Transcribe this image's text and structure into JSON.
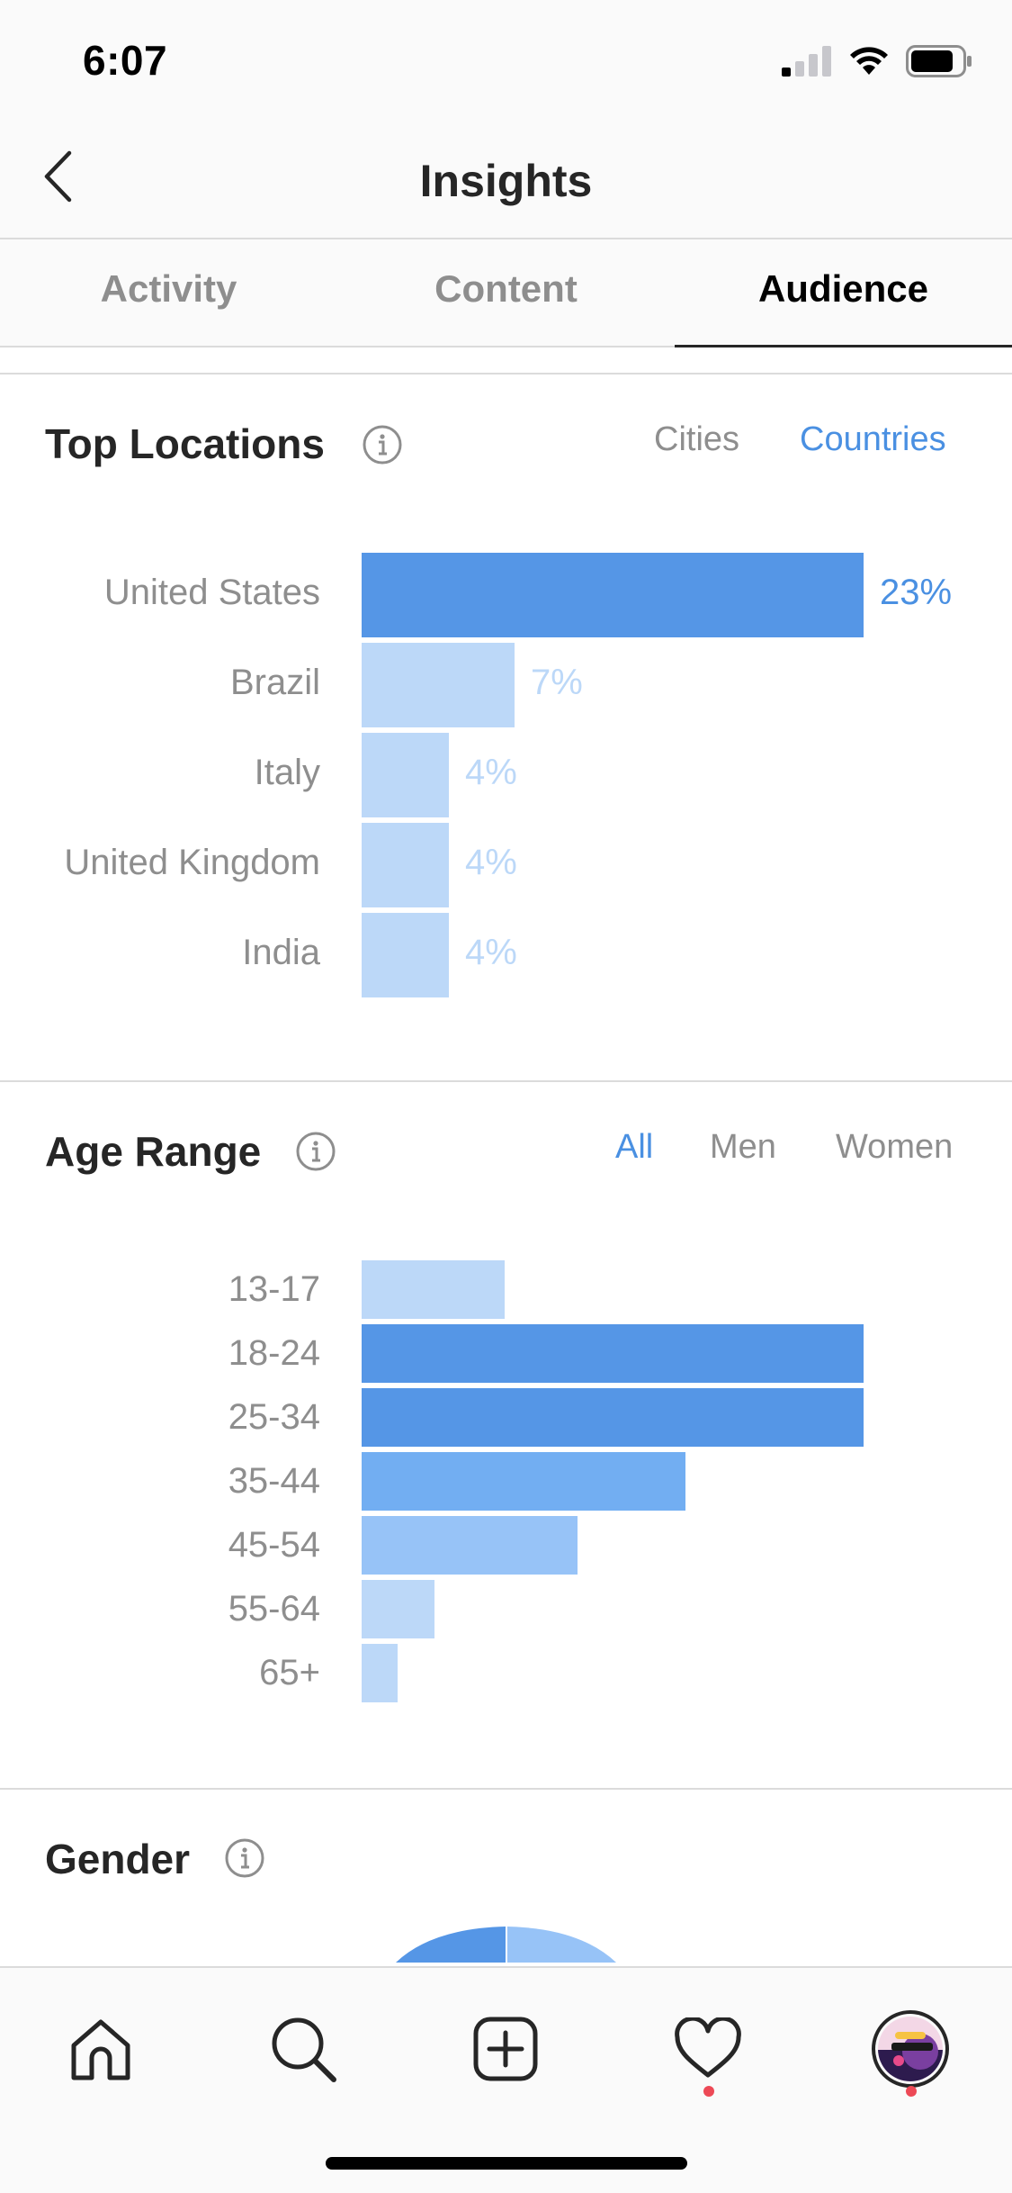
{
  "status_bar": {
    "time": "6:07"
  },
  "header": {
    "title": "Insights"
  },
  "tabs": [
    {
      "label": "Activity",
      "active": false
    },
    {
      "label": "Content",
      "active": false
    },
    {
      "label": "Audience",
      "active": true
    }
  ],
  "top_locations": {
    "title": "Top Locations",
    "filters": [
      {
        "label": "Cities",
        "active": false
      },
      {
        "label": "Countries",
        "active": true
      }
    ],
    "rows": [
      {
        "label": "United States",
        "value": "23%",
        "percent": 23
      },
      {
        "label": "Brazil",
        "value": "7%",
        "percent": 7
      },
      {
        "label": "Italy",
        "value": "4%",
        "percent": 4
      },
      {
        "label": "United Kingdom",
        "value": "4%",
        "percent": 4
      },
      {
        "label": "India",
        "value": "4%",
        "percent": 4
      }
    ]
  },
  "age_range": {
    "title": "Age Range",
    "filters": [
      {
        "label": "All",
        "active": true
      },
      {
        "label": "Men",
        "active": false
      },
      {
        "label": "Women",
        "active": false
      }
    ],
    "rows": [
      {
        "label": "13-17",
        "relative": 0.285
      },
      {
        "label": "18-24",
        "relative": 1.0
      },
      {
        "label": "25-34",
        "relative": 1.0
      },
      {
        "label": "35-44",
        "relative": 0.645
      },
      {
        "label": "45-54",
        "relative": 0.43
      },
      {
        "label": "55-64",
        "relative": 0.145
      },
      {
        "label": "65+",
        "relative": 0.072
      }
    ]
  },
  "gender": {
    "title": "Gender"
  },
  "colors": {
    "accent": "#4a90e2",
    "bar_strong": "#5596e6",
    "bar_medium": "#72aef2",
    "bar_light": "#97c3f7",
    "bar_pale": "#bcd8f8",
    "notification": "#ed4956"
  },
  "bottom_nav": [
    {
      "icon": "home-icon"
    },
    {
      "icon": "search-icon"
    },
    {
      "icon": "new-post-icon"
    },
    {
      "icon": "activity-heart-icon"
    },
    {
      "icon": "profile-avatar"
    }
  ]
}
